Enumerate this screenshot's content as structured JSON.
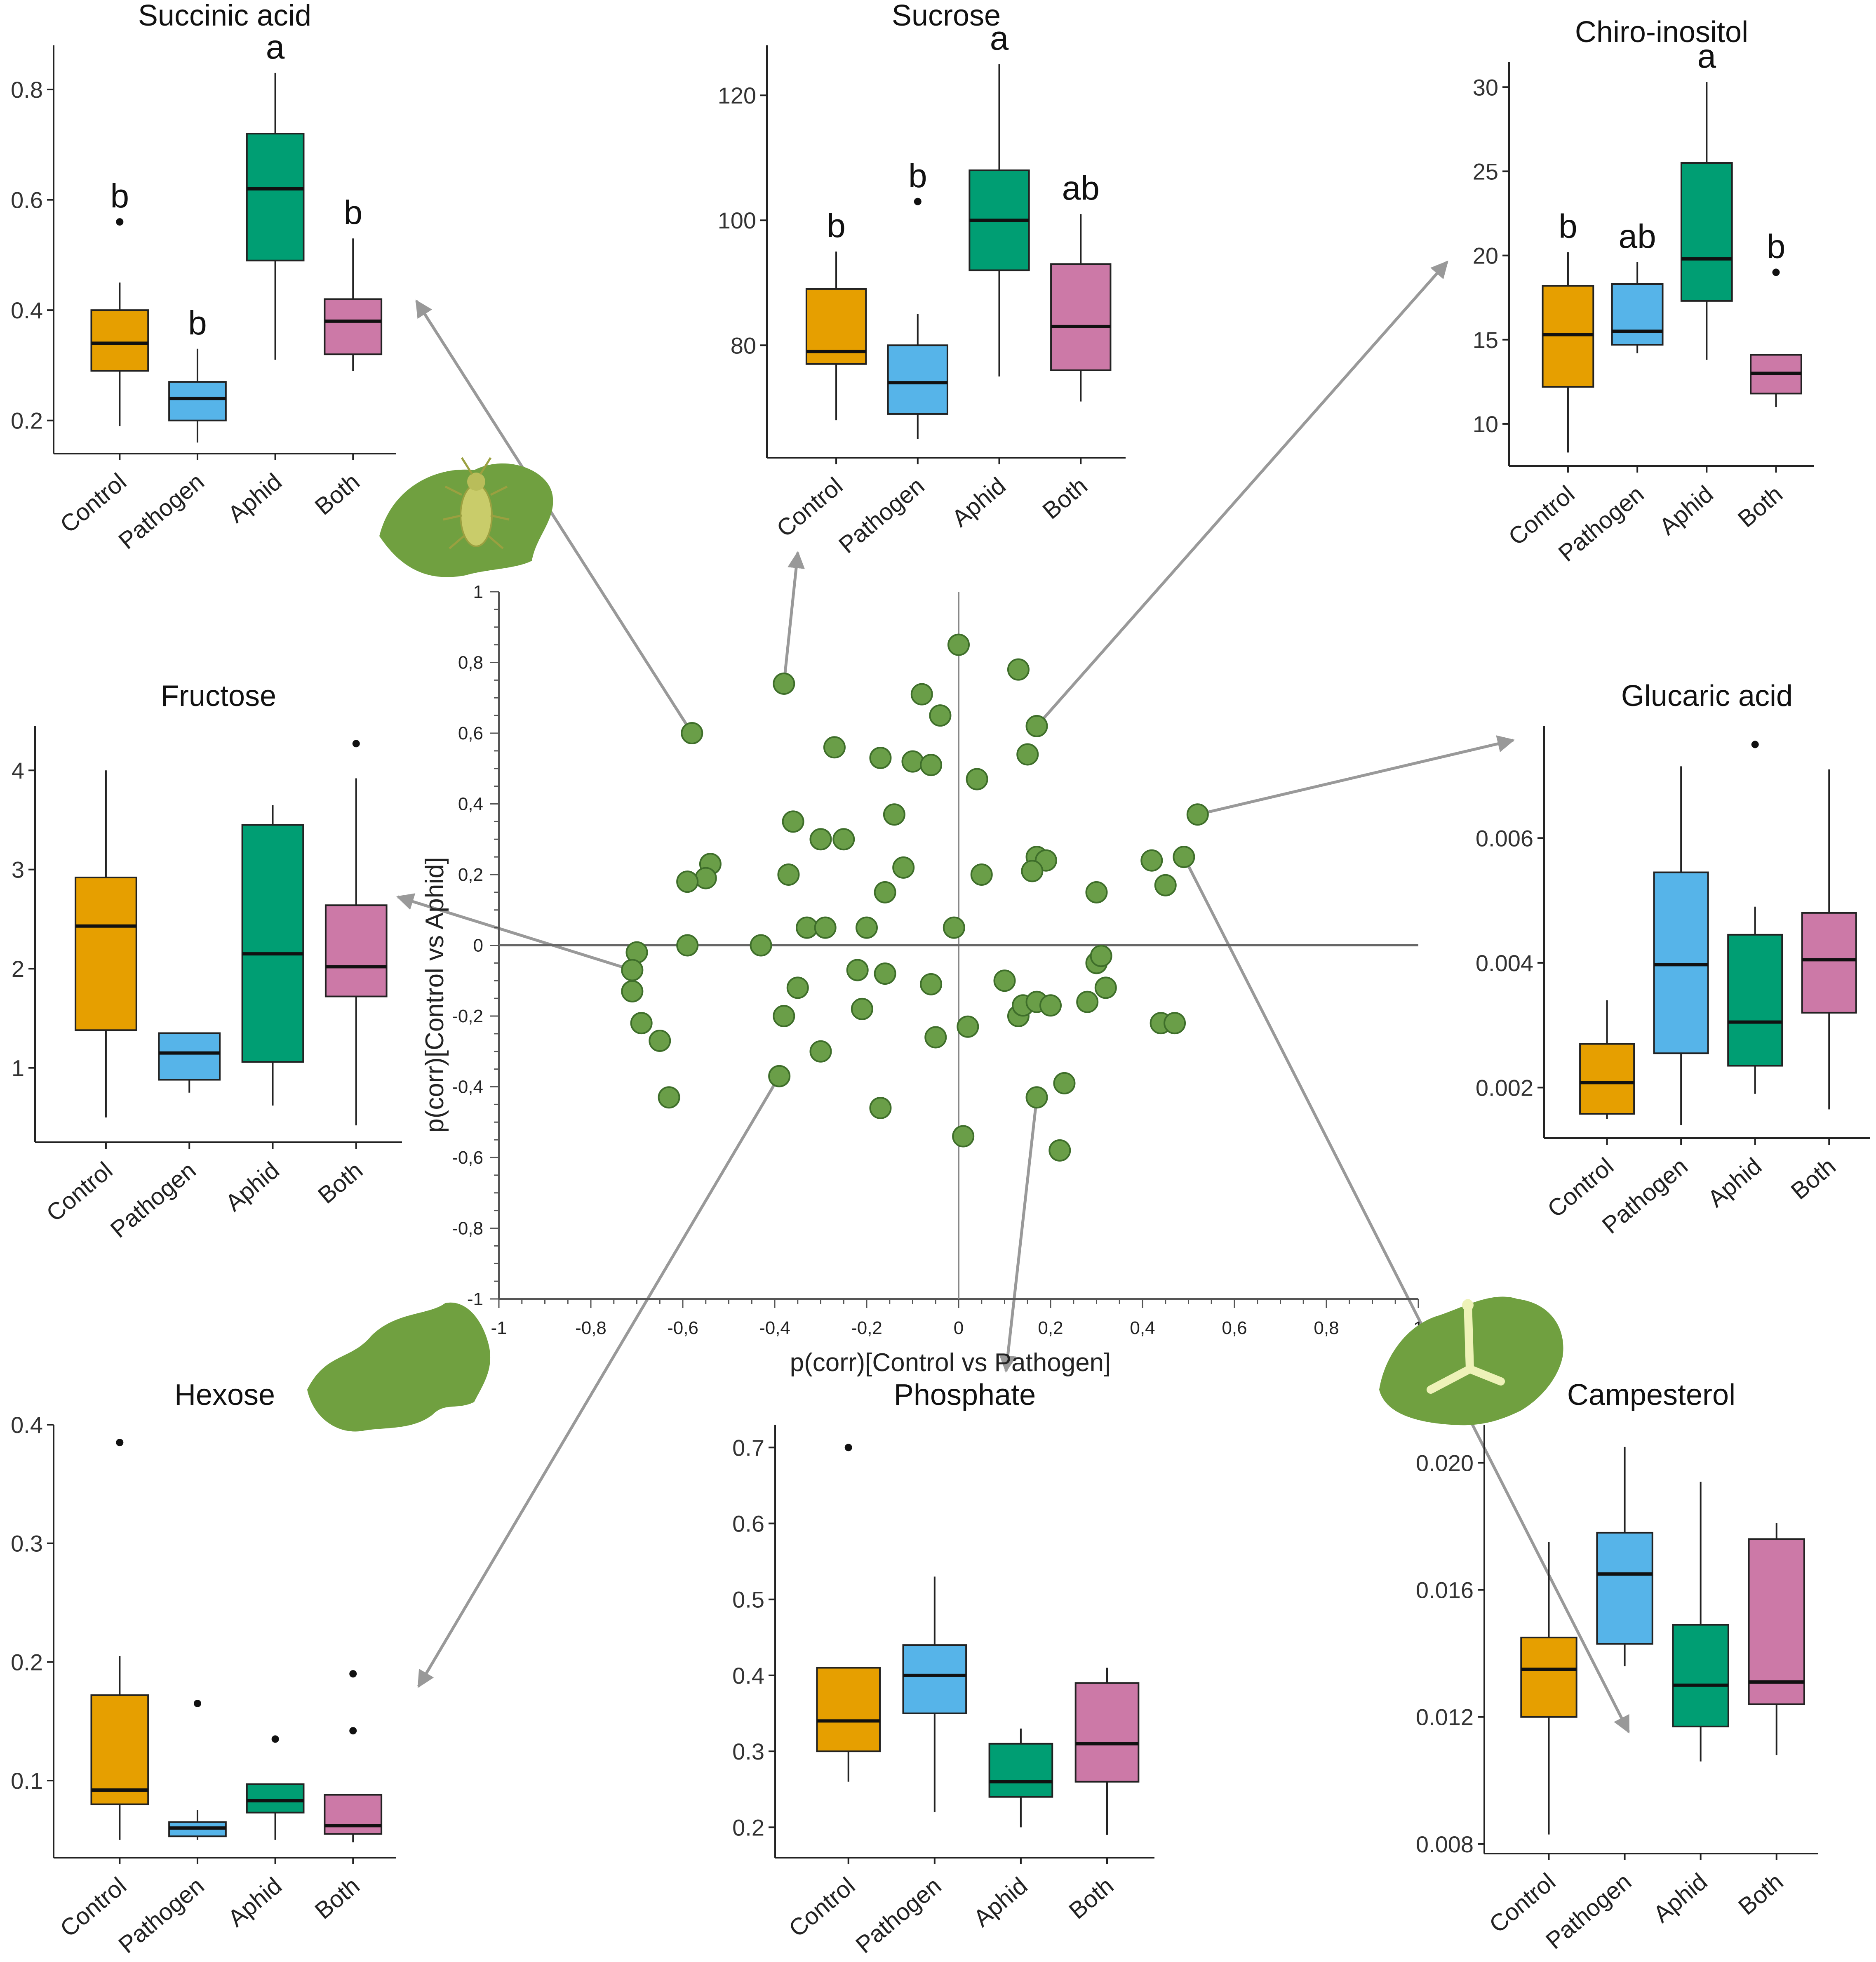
{
  "colors": {
    "Control": "#E69F00",
    "Pathogen": "#56B4E9",
    "Aphid": "#009E73",
    "Both": "#CC79A7",
    "points": "#6a9e48",
    "arrow": "#999999",
    "leaf": "#70a040"
  },
  "icons": [
    "aphid-on-leaf-icon",
    "leaf-icon",
    "pathogen-on-leaf-icon"
  ],
  "chart_data": [
    {
      "type": "scatter",
      "name": "loadings",
      "xlabel": "p(corr)[Control vs Pathogen]",
      "ylabel": "p(corr)[Control vs Aphid]",
      "xlim": [
        -1,
        1
      ],
      "ylim": [
        -1,
        1
      ],
      "xticks": [
        "-1",
        "-0,8",
        "-0,6",
        "-0,4",
        "-0,2",
        "0",
        "0,2",
        "0,4",
        "0,6",
        "0,8",
        "1"
      ],
      "yticks": [
        "1",
        "0,8",
        "0,6",
        "0,4",
        "0,2",
        "0",
        "-0,2",
        "-0,4",
        "-0,6",
        "-0,8",
        "-1"
      ],
      "points": [
        [
          0.0,
          0.85
        ],
        [
          0.13,
          0.78
        ],
        [
          -0.38,
          0.74
        ],
        [
          -0.08,
          0.71
        ],
        [
          -0.04,
          0.65
        ],
        [
          0.17,
          0.62
        ],
        [
          -0.58,
          0.6
        ],
        [
          -0.27,
          0.56
        ],
        [
          -0.17,
          0.53
        ],
        [
          -0.1,
          0.52
        ],
        [
          -0.06,
          0.51
        ],
        [
          0.15,
          0.54
        ],
        [
          0.04,
          0.47
        ],
        [
          -0.36,
          0.35
        ],
        [
          -0.14,
          0.37
        ],
        [
          -0.3,
          0.3
        ],
        [
          -0.25,
          0.3
        ],
        [
          -0.54,
          0.23
        ],
        [
          -0.55,
          0.19
        ],
        [
          -0.59,
          0.18
        ],
        [
          -0.37,
          0.2
        ],
        [
          -0.12,
          0.22
        ],
        [
          0.05,
          0.2
        ],
        [
          0.17,
          0.25
        ],
        [
          0.19,
          0.24
        ],
        [
          0.16,
          0.21
        ],
        [
          -0.16,
          0.15
        ],
        [
          0.3,
          0.15
        ],
        [
          0.42,
          0.24
        ],
        [
          0.49,
          0.25
        ],
        [
          0.52,
          0.37
        ],
        [
          0.45,
          0.17
        ],
        [
          -0.33,
          0.05
        ],
        [
          -0.29,
          0.05
        ],
        [
          -0.2,
          0.05
        ],
        [
          -0.01,
          0.05
        ],
        [
          -0.43,
          0.0
        ],
        [
          -0.59,
          0.0
        ],
        [
          -0.7,
          -0.02
        ],
        [
          -0.71,
          -0.07
        ],
        [
          -0.71,
          -0.13
        ],
        [
          -0.69,
          -0.22
        ],
        [
          -0.65,
          -0.27
        ],
        [
          -0.63,
          -0.43
        ],
        [
          -0.35,
          -0.12
        ],
        [
          -0.38,
          -0.2
        ],
        [
          -0.22,
          -0.07
        ],
        [
          -0.16,
          -0.08
        ],
        [
          -0.21,
          -0.18
        ],
        [
          -0.06,
          -0.11
        ],
        [
          -0.05,
          -0.26
        ],
        [
          -0.3,
          -0.3
        ],
        [
          -0.39,
          -0.37
        ],
        [
          0.02,
          -0.23
        ],
        [
          0.1,
          -0.1
        ],
        [
          0.13,
          -0.2
        ],
        [
          0.14,
          -0.17
        ],
        [
          0.17,
          -0.16
        ],
        [
          0.2,
          -0.17
        ],
        [
          0.28,
          -0.16
        ],
        [
          0.3,
          -0.05
        ],
        [
          0.31,
          -0.03
        ],
        [
          0.32,
          -0.12
        ],
        [
          0.44,
          -0.22
        ],
        [
          0.47,
          -0.22
        ],
        [
          0.17,
          -0.43
        ],
        [
          0.23,
          -0.39
        ],
        [
          0.22,
          -0.58
        ],
        [
          0.01,
          -0.54
        ],
        [
          -0.17,
          -0.46
        ]
      ]
    },
    {
      "type": "box",
      "title": "Succinic acid",
      "categories": [
        "Control",
        "Pathogen",
        "Aphid",
        "Both"
      ],
      "ylim": [
        0.14,
        0.88
      ],
      "ticks": [
        "0.2",
        "0.4",
        "0.6",
        "0.8"
      ],
      "tickvals": [
        0.2,
        0.4,
        0.6,
        0.8
      ],
      "boxes": [
        {
          "min": 0.19,
          "q1": 0.29,
          "median": 0.34,
          "q3": 0.4,
          "max": 0.45,
          "outliers": [
            0.56
          ]
        },
        {
          "min": 0.16,
          "q1": 0.2,
          "median": 0.24,
          "q3": 0.27,
          "max": 0.33,
          "outliers": []
        },
        {
          "min": 0.31,
          "q1": 0.49,
          "median": 0.62,
          "q3": 0.72,
          "max": 0.83,
          "outliers": []
        },
        {
          "min": 0.29,
          "q1": 0.32,
          "median": 0.38,
          "q3": 0.42,
          "max": 0.53,
          "outliers": []
        }
      ],
      "letters": [
        "b",
        "b",
        "a",
        "b"
      ]
    },
    {
      "type": "box",
      "title": "Sucrose",
      "categories": [
        "Control",
        "Pathogen",
        "Aphid",
        "Both"
      ],
      "ylim": [
        62,
        128
      ],
      "ticks": [
        "80",
        "100",
        "120"
      ],
      "tickvals": [
        80,
        100,
        120
      ],
      "boxes": [
        {
          "min": 68,
          "q1": 77,
          "median": 79,
          "q3": 89,
          "max": 95,
          "outliers": []
        },
        {
          "min": 65,
          "q1": 69,
          "median": 74,
          "q3": 80,
          "max": 85,
          "outliers": [
            103
          ]
        },
        {
          "min": 75,
          "q1": 92,
          "median": 100,
          "q3": 108,
          "max": 125,
          "outliers": []
        },
        {
          "min": 71,
          "q1": 76,
          "median": 83,
          "q3": 93,
          "max": 101,
          "outliers": []
        }
      ],
      "letters": [
        "b",
        "b",
        "a",
        "ab"
      ]
    },
    {
      "type": "box",
      "title": "Chiro-inositol",
      "categories": [
        "Control",
        "Pathogen",
        "Aphid",
        "Both"
      ],
      "ylim": [
        7.5,
        31.5
      ],
      "ticks": [
        "10",
        "15",
        "20",
        "25",
        "30"
      ],
      "tickvals": [
        10,
        15,
        20,
        25,
        30
      ],
      "boxes": [
        {
          "min": 8.3,
          "q1": 12.2,
          "median": 15.3,
          "q3": 18.2,
          "max": 20.2,
          "outliers": []
        },
        {
          "min": 14.2,
          "q1": 14.7,
          "median": 15.5,
          "q3": 18.3,
          "max": 19.6,
          "outliers": []
        },
        {
          "min": 13.8,
          "q1": 17.3,
          "median": 19.8,
          "q3": 25.5,
          "max": 30.3,
          "outliers": []
        },
        {
          "min": 11.0,
          "q1": 11.8,
          "median": 13.0,
          "q3": 14.1,
          "max": 14.1,
          "outliers": [
            19.0
          ]
        }
      ],
      "letters": [
        "b",
        "ab",
        "a",
        "b"
      ]
    },
    {
      "type": "box",
      "title": "Fructose",
      "categories": [
        "Control",
        "Pathogen",
        "Aphid",
        "Both"
      ],
      "ylim": [
        0.25,
        4.45
      ],
      "ticks": [
        "1",
        "2",
        "3",
        "4"
      ],
      "tickvals": [
        1,
        2,
        3,
        4
      ],
      "boxes": [
        {
          "min": 0.5,
          "q1": 1.38,
          "median": 2.43,
          "q3": 2.92,
          "max": 4.0,
          "outliers": []
        },
        {
          "min": 0.75,
          "q1": 0.88,
          "median": 1.15,
          "q3": 1.35,
          "max": 1.35,
          "outliers": []
        },
        {
          "min": 0.62,
          "q1": 1.06,
          "median": 2.15,
          "q3": 3.45,
          "max": 3.65,
          "outliers": []
        },
        {
          "min": 0.42,
          "q1": 1.72,
          "median": 2.02,
          "q3": 2.64,
          "max": 3.92,
          "outliers": [
            4.27
          ]
        }
      ],
      "letters": []
    },
    {
      "type": "box",
      "title": "Glucaric acid",
      "categories": [
        "Control",
        "Pathogen",
        "Aphid",
        "Both"
      ],
      "ylim": [
        0.00119,
        0.0078
      ],
      "ticks": [
        "0.002",
        "0.004",
        "0.006"
      ],
      "tickvals": [
        0.002,
        0.004,
        0.006
      ],
      "boxes": [
        {
          "min": 0.0015,
          "q1": 0.00158,
          "median": 0.00208,
          "q3": 0.0027,
          "max": 0.0034,
          "outliers": []
        },
        {
          "min": 0.0014,
          "q1": 0.00255,
          "median": 0.00397,
          "q3": 0.00545,
          "max": 0.00715,
          "outliers": []
        },
        {
          "min": 0.0019,
          "q1": 0.00235,
          "median": 0.00305,
          "q3": 0.00445,
          "max": 0.0049,
          "outliers": [
            0.0075
          ]
        },
        {
          "min": 0.00165,
          "q1": 0.0032,
          "median": 0.00405,
          "q3": 0.0048,
          "max": 0.0071,
          "outliers": []
        }
      ],
      "letters": []
    },
    {
      "type": "box",
      "title": "Hexose",
      "categories": [
        "Control",
        "Pathogen",
        "Aphid",
        "Both"
      ],
      "ylim": [
        0.035,
        0.4
      ],
      "ticks": [
        "0.1",
        "0.2",
        "0.3",
        "0.4"
      ],
      "tickvals": [
        0.1,
        0.2,
        0.3,
        0.4
      ],
      "boxes": [
        {
          "min": 0.05,
          "q1": 0.08,
          "median": 0.092,
          "q3": 0.172,
          "max": 0.205,
          "outliers": [
            0.385
          ]
        },
        {
          "min": 0.05,
          "q1": 0.053,
          "median": 0.06,
          "q3": 0.065,
          "max": 0.075,
          "outliers": [
            0.165
          ]
        },
        {
          "min": 0.05,
          "q1": 0.073,
          "median": 0.083,
          "q3": 0.097,
          "max": 0.097,
          "outliers": [
            0.135
          ]
        },
        {
          "min": 0.048,
          "q1": 0.055,
          "median": 0.062,
          "q3": 0.088,
          "max": 0.088,
          "outliers": [
            0.142,
            0.19
          ]
        }
      ],
      "letters": []
    },
    {
      "type": "box",
      "title": "Phosphate",
      "categories": [
        "Control",
        "Pathogen",
        "Aphid",
        "Both"
      ],
      "ylim": [
        0.16,
        0.73
      ],
      "ticks": [
        "0.2",
        "0.3",
        "0.4",
        "0.5",
        "0.6",
        "0.7"
      ],
      "tickvals": [
        0.2,
        0.3,
        0.4,
        0.5,
        0.6,
        0.7
      ],
      "boxes": [
        {
          "min": 0.26,
          "q1": 0.3,
          "median": 0.34,
          "q3": 0.41,
          "max": 0.41,
          "outliers": [
            0.7
          ]
        },
        {
          "min": 0.22,
          "q1": 0.35,
          "median": 0.4,
          "q3": 0.44,
          "max": 0.53,
          "outliers": []
        },
        {
          "min": 0.2,
          "q1": 0.24,
          "median": 0.26,
          "q3": 0.31,
          "max": 0.33,
          "outliers": []
        },
        {
          "min": 0.19,
          "q1": 0.26,
          "median": 0.31,
          "q3": 0.39,
          "max": 0.41,
          "outliers": []
        }
      ],
      "letters": []
    },
    {
      "type": "box",
      "title": "Campesterol",
      "categories": [
        "Control",
        "Pathogen",
        "Aphid",
        "Both"
      ],
      "ylim": [
        0.0077,
        0.0212
      ],
      "ticks": [
        "0.008",
        "0.012",
        "0.016",
        "0.020"
      ],
      "tickvals": [
        0.008,
        0.012,
        0.016,
        0.02
      ],
      "boxes": [
        {
          "min": 0.0083,
          "q1": 0.012,
          "median": 0.0135,
          "q3": 0.0145,
          "max": 0.0175,
          "outliers": []
        },
        {
          "min": 0.0136,
          "q1": 0.0143,
          "median": 0.0165,
          "q3": 0.0178,
          "max": 0.0205,
          "outliers": []
        },
        {
          "min": 0.0106,
          "q1": 0.0117,
          "median": 0.013,
          "q3": 0.0149,
          "max": 0.0194,
          "outliers": []
        },
        {
          "min": 0.0108,
          "q1": 0.0124,
          "median": 0.0131,
          "q3": 0.0176,
          "max": 0.0181,
          "outliers": []
        }
      ],
      "letters": []
    }
  ]
}
